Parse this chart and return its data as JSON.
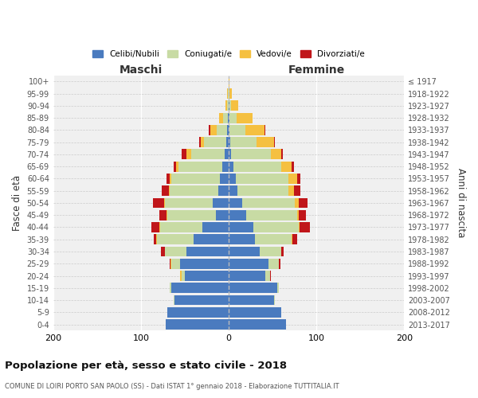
{
  "age_groups": [
    "0-4",
    "5-9",
    "10-14",
    "15-19",
    "20-24",
    "25-29",
    "30-34",
    "35-39",
    "40-44",
    "45-49",
    "50-54",
    "55-59",
    "60-64",
    "65-69",
    "70-74",
    "75-79",
    "80-84",
    "85-89",
    "90-94",
    "95-99",
    "100+"
  ],
  "birth_years": [
    "2013-2017",
    "2008-2012",
    "2003-2007",
    "1998-2002",
    "1993-1997",
    "1988-1992",
    "1983-1987",
    "1978-1982",
    "1973-1977",
    "1968-1972",
    "1963-1967",
    "1958-1962",
    "1953-1957",
    "1948-1952",
    "1943-1947",
    "1938-1942",
    "1933-1937",
    "1928-1932",
    "1923-1927",
    "1918-1922",
    "≤ 1917"
  ],
  "colors": {
    "celibi": "#4a7bbf",
    "coniugati": "#c8dba4",
    "vedovi": "#f5c040",
    "divorziati": "#c0161a"
  },
  "maschi": {
    "celibi": [
      72,
      70,
      62,
      65,
      50,
      55,
      48,
      40,
      30,
      15,
      18,
      12,
      10,
      7,
      5,
      3,
      2,
      1,
      0,
      0,
      0
    ],
    "coniugati": [
      0,
      0,
      1,
      2,
      4,
      10,
      25,
      42,
      48,
      55,
      55,
      55,
      55,
      50,
      38,
      25,
      12,
      5,
      2,
      1,
      0
    ],
    "vedovi": [
      0,
      0,
      0,
      0,
      1,
      1,
      0,
      1,
      1,
      1,
      1,
      1,
      2,
      3,
      5,
      4,
      7,
      5,
      2,
      1,
      0
    ],
    "divorziati": [
      0,
      0,
      0,
      0,
      0,
      1,
      4,
      2,
      9,
      8,
      12,
      8,
      4,
      3,
      6,
      2,
      2,
      0,
      0,
      0,
      0
    ]
  },
  "femmine": {
    "celibi": [
      65,
      60,
      52,
      55,
      42,
      45,
      35,
      30,
      28,
      20,
      15,
      10,
      8,
      5,
      3,
      2,
      1,
      1,
      1,
      0,
      0
    ],
    "coniugati": [
      0,
      0,
      1,
      2,
      5,
      12,
      25,
      42,
      52,
      58,
      60,
      58,
      60,
      55,
      45,
      30,
      18,
      8,
      2,
      1,
      0
    ],
    "vedovi": [
      0,
      0,
      0,
      0,
      0,
      0,
      0,
      1,
      1,
      2,
      5,
      6,
      10,
      12,
      12,
      20,
      22,
      18,
      8,
      3,
      1
    ],
    "divorziati": [
      0,
      0,
      0,
      0,
      1,
      2,
      3,
      5,
      12,
      8,
      10,
      8,
      4,
      2,
      2,
      1,
      1,
      0,
      0,
      0,
      0
    ]
  },
  "xlim": 200,
  "title": "Popolazione per età, sesso e stato civile - 2018",
  "subtitle": "COMUNE DI LOIRI PORTO SAN PAOLO (SS) - Dati ISTAT 1° gennaio 2018 - Elaborazione TUTTITALIA.IT",
  "ylabel_left": "Fasce di età",
  "ylabel_right": "Anni di nascita",
  "xlabel_maschi": "Maschi",
  "xlabel_femmine": "Femmine",
  "legend_labels": [
    "Celibi/Nubili",
    "Coniugati/e",
    "Vedovi/e",
    "Divorziati/e"
  ],
  "bg_color": "#f0f0f0",
  "xticks": [
    -200,
    -100,
    0,
    100,
    200
  ]
}
